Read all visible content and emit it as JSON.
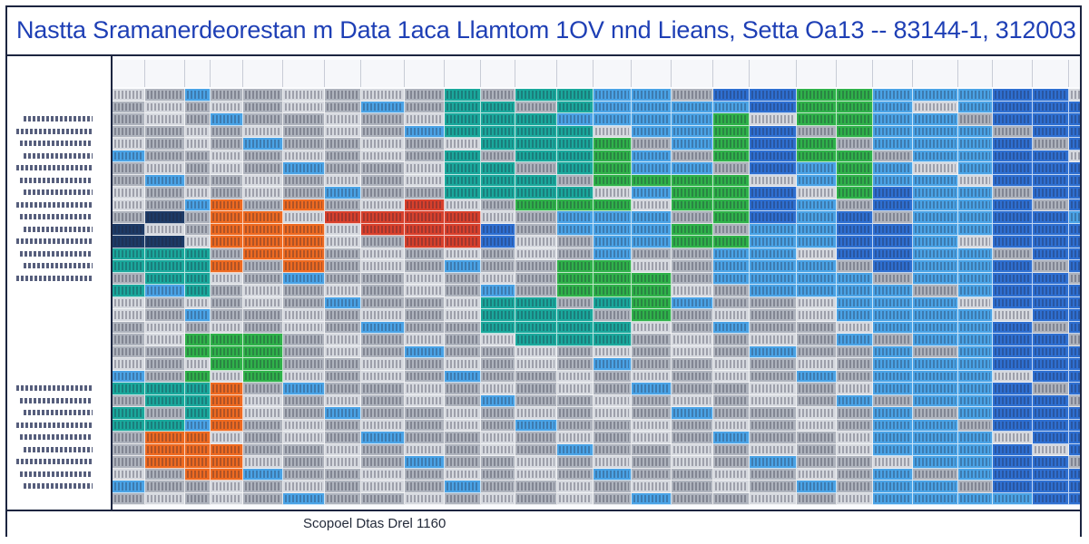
{
  "window": {
    "title": "Nastta Sramanerdeorestan m Data 1aca Llamtom 1OV nnd Lieans, Setta Oa13 -- 83144-1, 312003"
  },
  "footer": {
    "label": "Scopoel Dtas Drel 1160"
  },
  "palette": {
    "grey": "#aeb3bd",
    "light_grey": "#d6d9df",
    "blue": "#2e6fd1",
    "light_blue": "#4aa3e6",
    "teal": "#1aa89c",
    "green": "#2fb24a",
    "orange": "#ee6a21",
    "red": "#d8402c",
    "dark": "#1d3a66"
  }
}
